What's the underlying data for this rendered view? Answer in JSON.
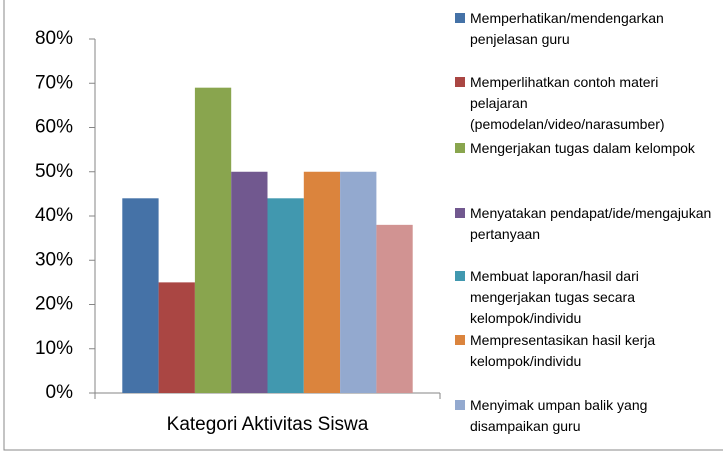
{
  "chart_data": {
    "type": "bar",
    "categories": [
      "Kategori Aktivitas Siswa"
    ],
    "series": [
      {
        "name": "Memperhatikan/mendengarkan penjelasan guru",
        "color": "#4572a7",
        "values": [
          44
        ]
      },
      {
        "name": "Memperlihatkan contoh materi pelajaran (pemodelan/video/narasumber)",
        "color": "#aa4643",
        "values": [
          25
        ]
      },
      {
        "name": "Mengerjakan tugas dalam kelompok",
        "color": "#89a54e",
        "values": [
          69
        ]
      },
      {
        "name": "Menyatakan pendapat/ide/mengajukan pertanyaan",
        "color": "#71588f",
        "values": [
          50
        ]
      },
      {
        "name": "Membuat laporan/hasil dari mengerjakan tugas secara kelompok/individu",
        "color": "#4198af",
        "values": [
          44
        ]
      },
      {
        "name": "Mempresentasikan hasil kerja kelompok/individu",
        "color": "#db843d",
        "values": [
          50
        ]
      },
      {
        "name": "Menyimak umpan balik yang disampaikan guru",
        "color": "#93a9cf",
        "values": [
          50
        ]
      },
      {
        "color": "#d19392",
        "values": [
          38
        ]
      }
    ],
    "ylim": [
      0,
      80
    ],
    "yticks": [
      {
        "value": 0,
        "label": "0%"
      },
      {
        "value": 10,
        "label": "10%"
      },
      {
        "value": 20,
        "label": "20%"
      },
      {
        "value": 30,
        "label": "30%"
      },
      {
        "value": 40,
        "label": "40%"
      },
      {
        "value": 50,
        "label": "50%"
      },
      {
        "value": 60,
        "label": "60%"
      },
      {
        "value": 70,
        "label": "70%"
      },
      {
        "value": 80,
        "label": "80%"
      }
    ],
    "grid": false
  }
}
